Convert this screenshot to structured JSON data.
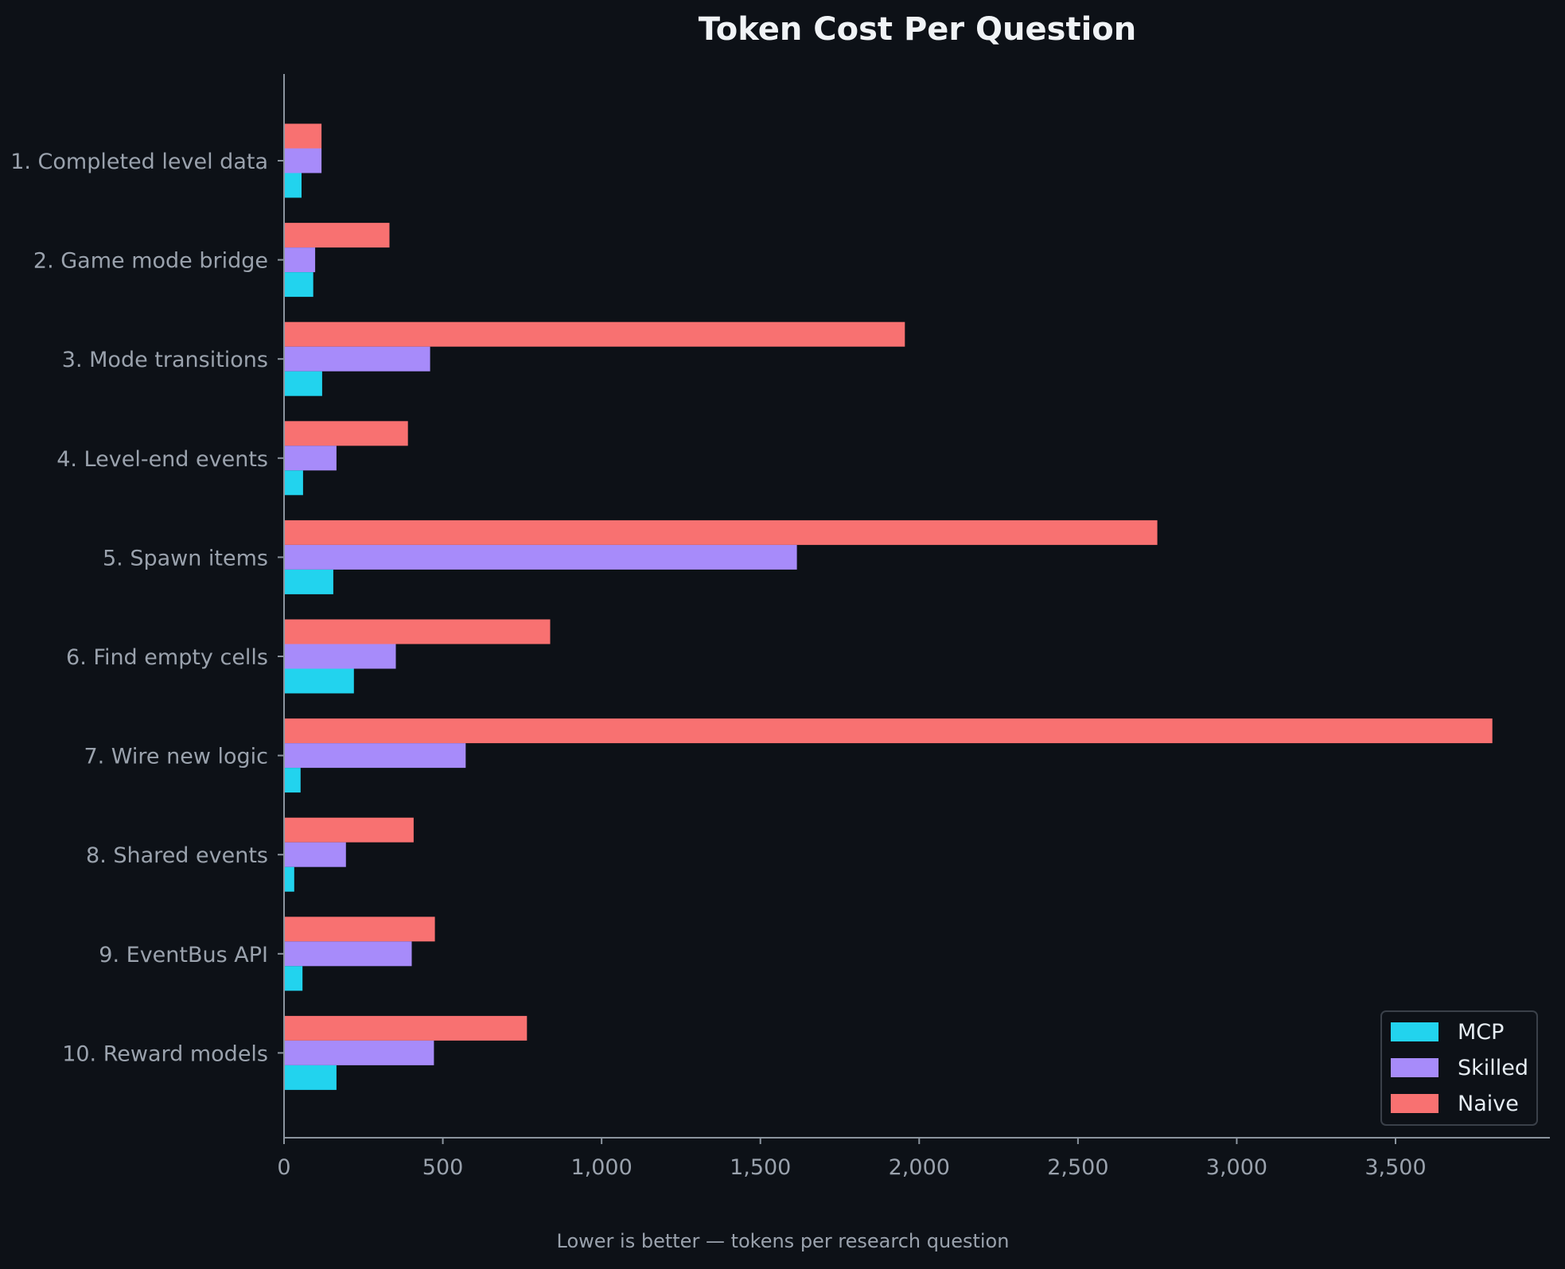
{
  "chart_data": {
    "type": "bar",
    "orientation": "horizontal",
    "title": "Token Cost Per Question",
    "footnote": "Lower is better — tokens per research question",
    "xlabel": "",
    "ylabel": "",
    "xlim": [
      0,
      4000
    ],
    "xticks": [
      0,
      500,
      1000,
      1500,
      2000,
      2500,
      3000,
      3500
    ],
    "xtick_labels": [
      "0",
      "500",
      "1,000",
      "1,500",
      "2,000",
      "2,500",
      "3,000",
      "3,500"
    ],
    "grid": false,
    "legend_position": "bottom-right",
    "categories": [
      "1. Completed level data",
      "2. Game mode bridge",
      "3. Mode transitions",
      "4. Level-end events",
      "5. Spawn items",
      "6. Find empty cells",
      "7. Wire new logic",
      "8. Shared events",
      "9. EventBus API",
      "10. Reward models"
    ],
    "series": [
      {
        "name": "MCP",
        "color": "#22d3ee",
        "values": [
          55,
          92,
          120,
          60,
          155,
          220,
          52,
          32,
          58,
          165
        ]
      },
      {
        "name": "Skilled",
        "color": "#a78bfa",
        "values": [
          118,
          98,
          460,
          165,
          1615,
          352,
          572,
          195,
          402,
          472
        ]
      },
      {
        "name": "Naive",
        "color": "#f87171",
        "values": [
          118,
          332,
          1955,
          390,
          2750,
          838,
          3805,
          408,
          475,
          765
        ]
      }
    ]
  }
}
